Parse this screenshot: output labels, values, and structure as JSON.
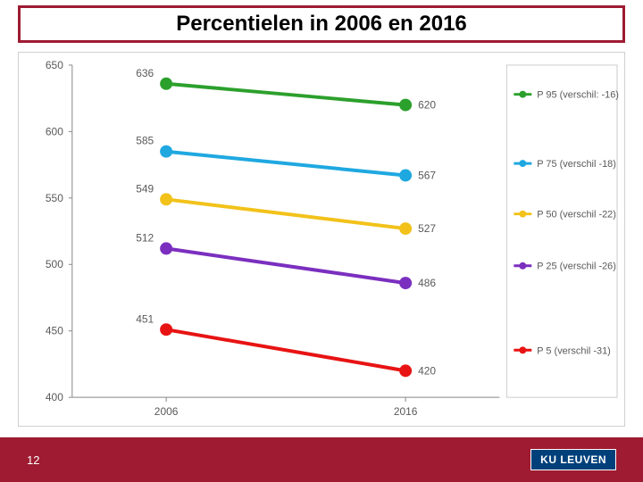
{
  "title": "Percentielen in 2006 en 2016",
  "page_number": "12",
  "logo_text": "KU LEUVEN",
  "chart": {
    "type": "line",
    "categories": [
      "2006",
      "2016"
    ],
    "ylim": [
      400,
      650
    ],
    "ytick_step": 50,
    "yticks": [
      "400",
      "450",
      "500",
      "550",
      "600",
      "650"
    ],
    "background_color": "#ffffff",
    "axis_color": "#888888",
    "tick_font_size": 12,
    "tick_color": "#595959",
    "line_width": 4,
    "marker_radius": 7,
    "label_font_size": 12,
    "label_color": "#595959",
    "legend_font_size": 11,
    "legend_color": "#595959",
    "series": [
      {
        "name": "P 95 (verschil: -16)",
        "color": "#2ca02c",
        "values": [
          636,
          620
        ]
      },
      {
        "name": "P 75 (verschil -18)",
        "color": "#1fa8e0",
        "values": [
          585,
          567
        ]
      },
      {
        "name": "P 50 (verschil -22)",
        "color": "#f2c21a",
        "values": [
          549,
          527
        ]
      },
      {
        "name": "P 25 (verschil -26)",
        "color": "#7b2fbf",
        "values": [
          512,
          486
        ]
      },
      {
        "name": "P 5 (verschil -31)",
        "color": "#e81313",
        "values": [
          451,
          420
        ]
      }
    ]
  },
  "colors": {
    "brand_dark_red": "#9e1b32",
    "logo_bg": "#00407a"
  }
}
